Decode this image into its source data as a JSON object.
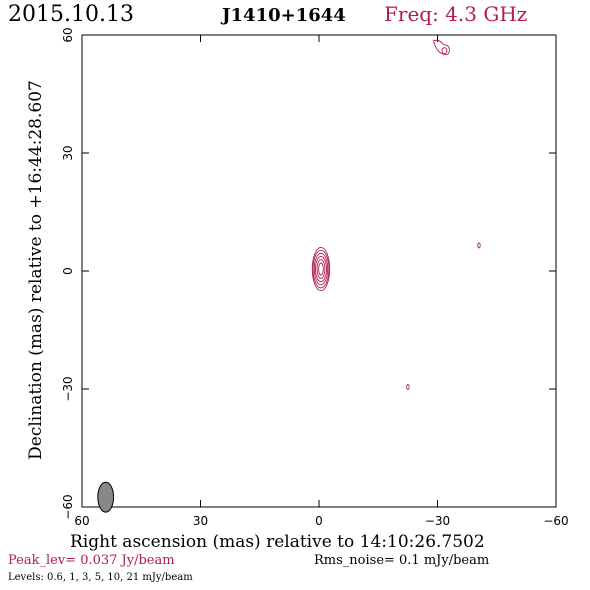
{
  "header": {
    "date": "2015.10.13",
    "source": "J1410+1644",
    "frequency": "Freq: 4.3 GHz"
  },
  "axes": {
    "xlabel": "Right ascension (mas) relative to 14:10:26.7502",
    "ylabel": "Declination (mas) relative to +16:44:28.607",
    "x_ticks": [
      "60",
      "30",
      "0",
      "−30",
      "−60"
    ],
    "y_ticks": [
      "60",
      "30",
      "0",
      "−30",
      "−60"
    ],
    "xlim": [
      60,
      -60
    ],
    "ylim": [
      -60,
      60
    ]
  },
  "footer": {
    "peak": "Peak_lev=  0.037 Jy/beam",
    "rms": "Rms_noise=   0.1 mJy/beam",
    "levels": "Levels: 0.6,    1,    3,    5,   10,   21 mJy/beam"
  },
  "colors": {
    "contour": "#b0204a",
    "accent_text": "#b0204a",
    "beam_fill": "#888888"
  },
  "contour_levels_mJy": [
    0.6,
    1,
    3,
    5,
    10,
    21
  ],
  "features": [
    {
      "name": "core",
      "x": -0.5,
      "y": 0.5,
      "rx": [
        2.2,
        2.0,
        1.7,
        1.4,
        1.0,
        0.6
      ],
      "ry": [
        5.5,
        4.8,
        4.0,
        3.2,
        2.4,
        1.5
      ]
    },
    {
      "name": "north-blob",
      "x": -31.0,
      "y": 56.0
    },
    {
      "name": "east-blob",
      "x": -40.5,
      "y": 6.5
    },
    {
      "name": "south-blob",
      "x": -22.5,
      "y": -29.5
    }
  ],
  "beam": {
    "x": 54.0,
    "y": -57.5,
    "major": 3.8,
    "minor": 2.0
  }
}
